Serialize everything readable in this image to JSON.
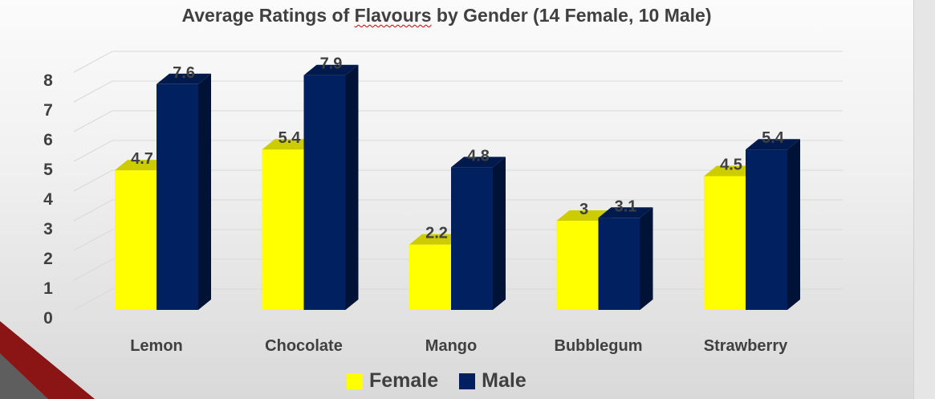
{
  "chart_data": {
    "type": "bar",
    "title_parts": [
      "Average Ratings of ",
      "Flavours",
      " by Gender (14 Female, 10 Male)"
    ],
    "categories": [
      "Lemon",
      "Chocolate",
      "Mango",
      "Bubblegum",
      "Strawberry"
    ],
    "series": [
      {
        "name": "Female",
        "values": [
          4.7,
          5.4,
          2.2,
          3,
          4.5
        ],
        "labels": [
          "4.7",
          "5.4",
          "2.2",
          "3",
          "4.5"
        ],
        "color": "#ffff00"
      },
      {
        "name": "Male",
        "values": [
          7.6,
          7.9,
          4.8,
          3.1,
          5.4
        ],
        "labels": [
          "7.6",
          "7.9",
          "4.8",
          "3.1",
          "5.4"
        ],
        "color": "#002060"
      }
    ],
    "yticks": [
      "0",
      "1",
      "2",
      "3",
      "4",
      "5",
      "6",
      "7",
      "8"
    ],
    "ylim": [
      0,
      8
    ],
    "xlabel": "",
    "ylabel": "",
    "grid": true,
    "legend_position": "bottom",
    "three_d": true
  }
}
